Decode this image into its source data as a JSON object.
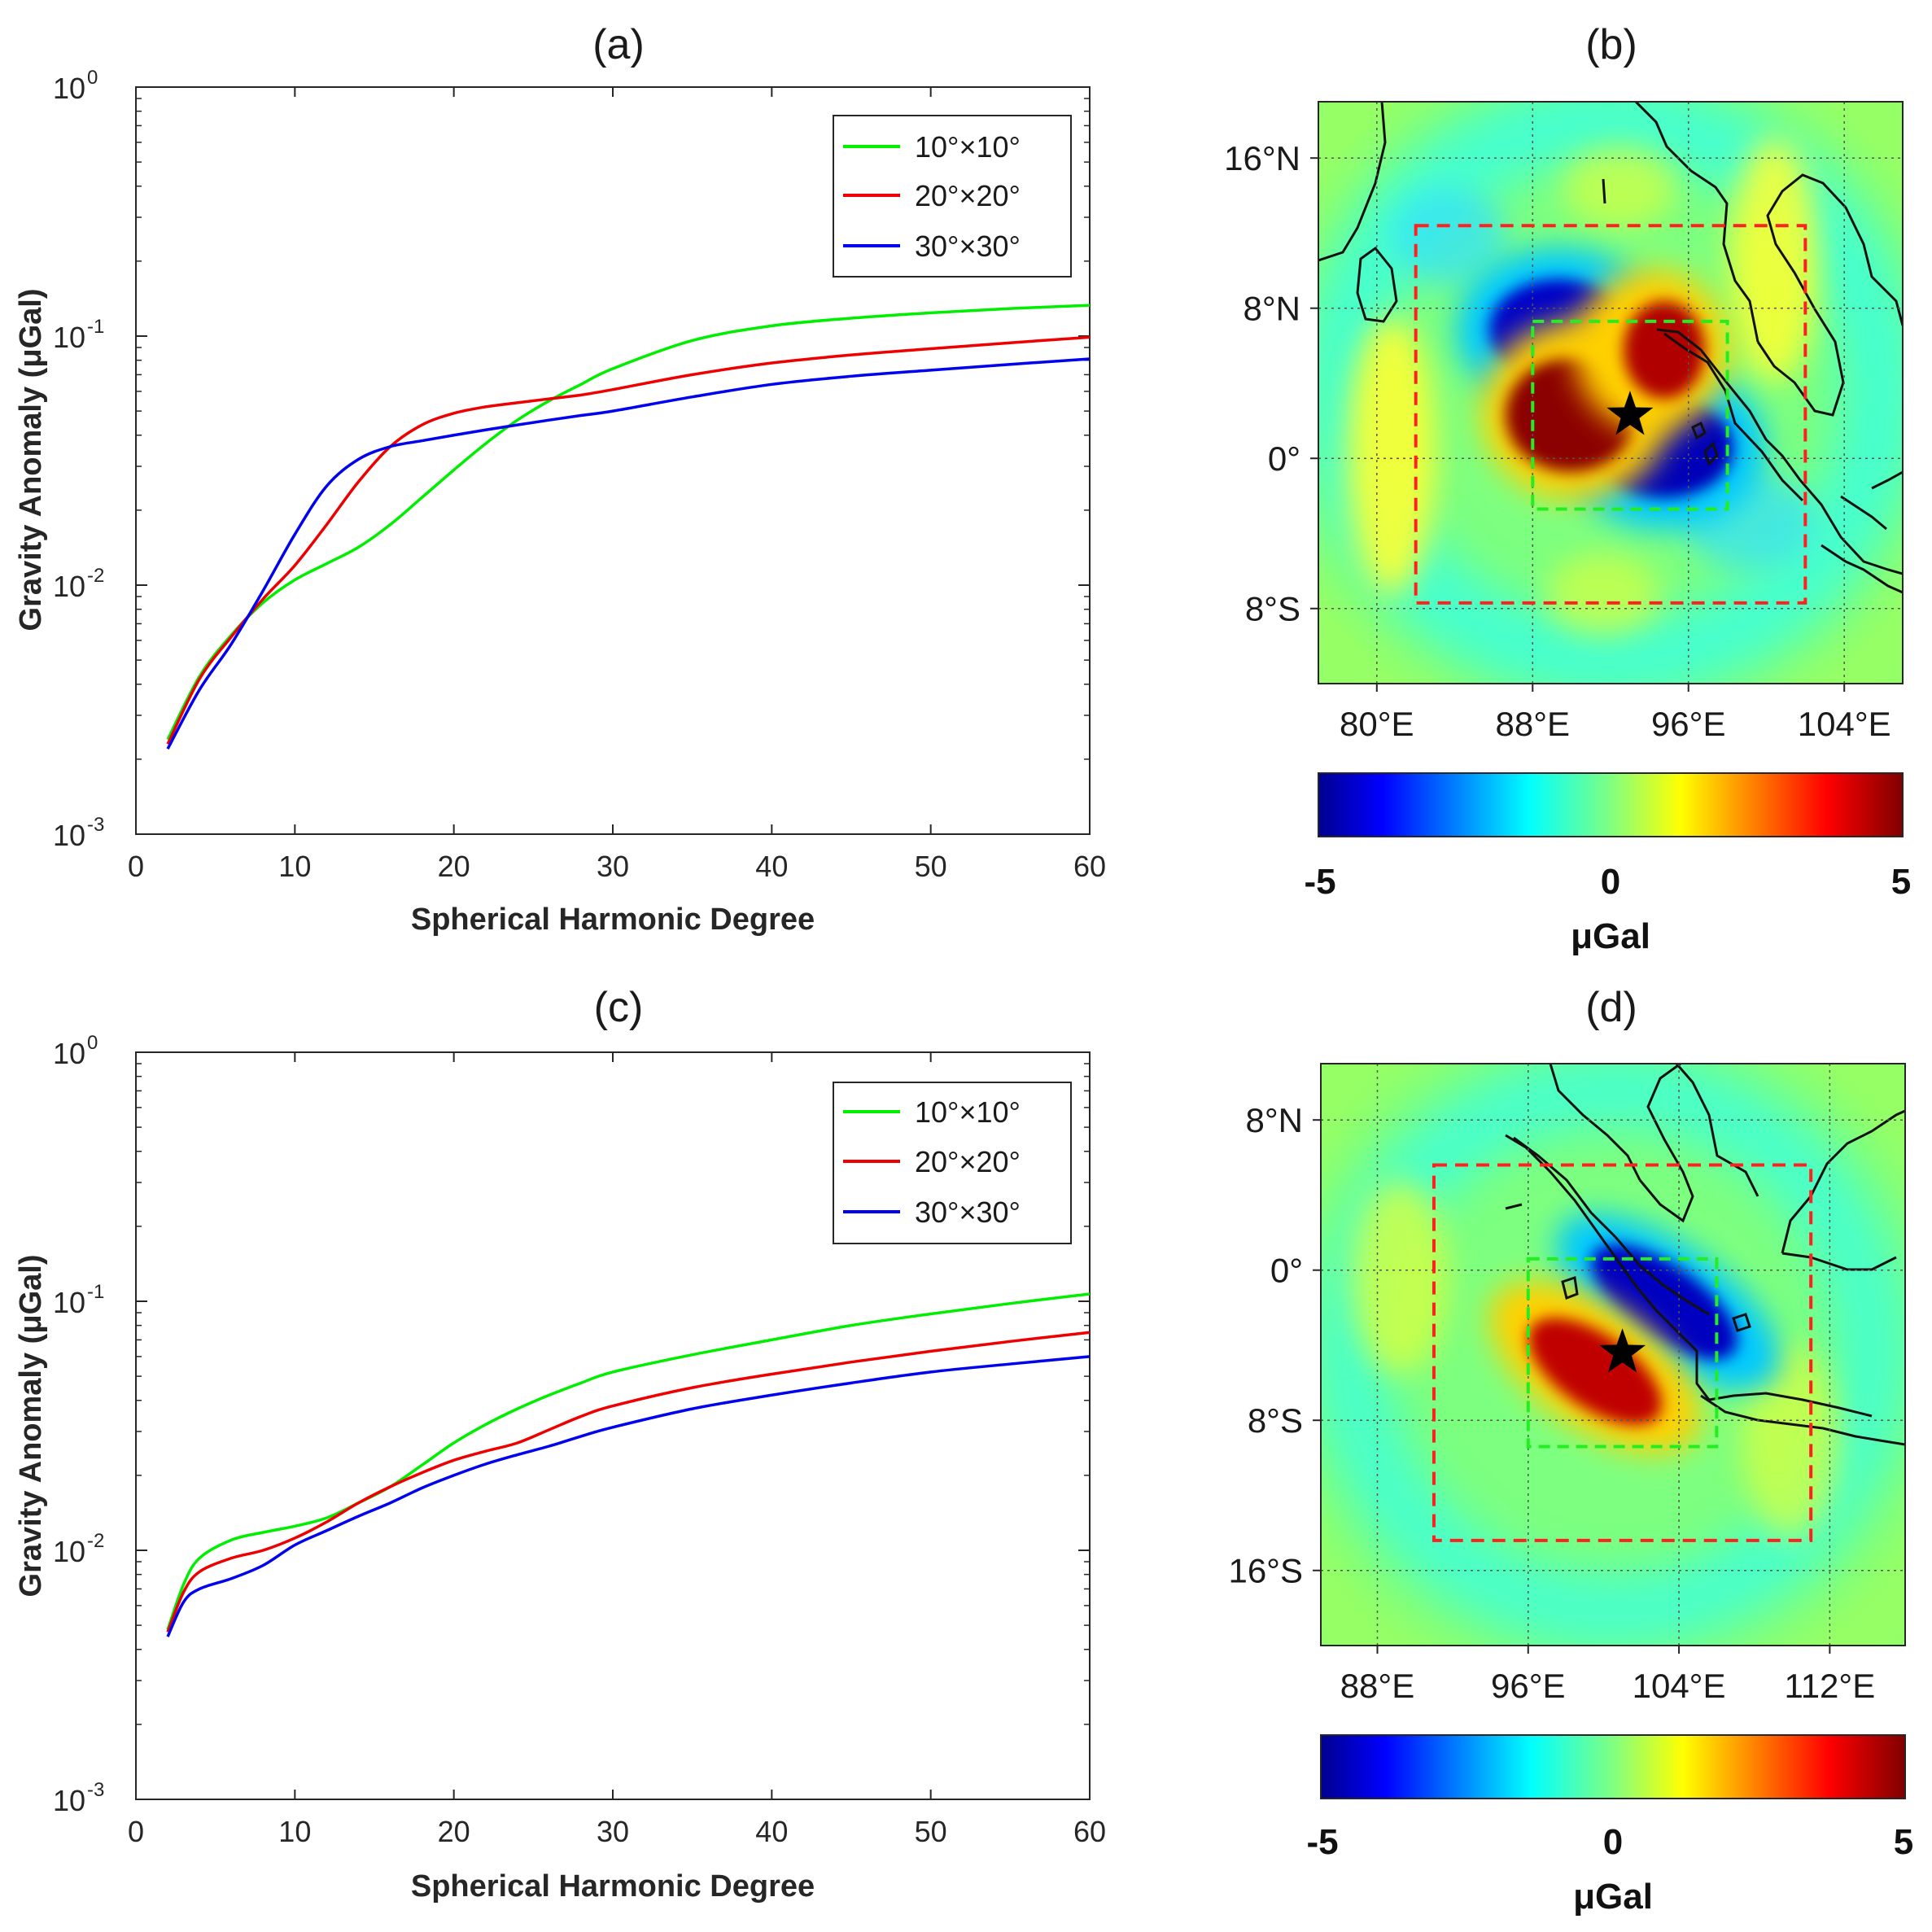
{
  "chart_data": [
    {
      "id": "a",
      "type": "line",
      "title": "(a)",
      "xlabel": "Spherical Harmonic Degree",
      "ylabel": "Gravity Anomaly (μGal)",
      "xlim": [
        0,
        60
      ],
      "ylim": [
        0.001,
        1
      ],
      "yscale": "log",
      "xticks": [
        "0",
        "10",
        "20",
        "30",
        "40",
        "50",
        "60"
      ],
      "yticks": [
        {
          "base": "10",
          "exp": "0"
        },
        {
          "base": "10",
          "exp": "-1"
        },
        {
          "base": "10",
          "exp": "-2"
        },
        {
          "base": "10",
          "exp": "-3"
        }
      ],
      "legend_position": "top-right",
      "series": [
        {
          "name": "10°×10°",
          "color": "#00ee00",
          "x": [
            2,
            4,
            6,
            8,
            10,
            12,
            14,
            16,
            18,
            20,
            22,
            24,
            26,
            28,
            30,
            35,
            40,
            45,
            50,
            55,
            60
          ],
          "y": [
            0.0024,
            0.0043,
            0.0063,
            0.0085,
            0.0105,
            0.0122,
            0.0142,
            0.0175,
            0.0225,
            0.029,
            0.037,
            0.046,
            0.055,
            0.064,
            0.074,
            0.096,
            0.11,
            0.118,
            0.124,
            0.129,
            0.133
          ]
        },
        {
          "name": "20°×20°",
          "color": "#ee0000",
          "x": [
            2,
            4,
            6,
            8,
            10,
            12,
            14,
            16,
            18,
            20,
            22,
            24,
            26,
            28,
            30,
            35,
            40,
            45,
            50,
            55,
            60
          ],
          "y": [
            0.0023,
            0.0042,
            0.0062,
            0.0088,
            0.012,
            0.0175,
            0.026,
            0.036,
            0.044,
            0.049,
            0.052,
            0.054,
            0.056,
            0.058,
            0.061,
            0.07,
            0.078,
            0.084,
            0.089,
            0.094,
            0.099
          ]
        },
        {
          "name": "30°×30°",
          "color": "#0000ee",
          "x": [
            2,
            4,
            6,
            8,
            10,
            12,
            14,
            16,
            18,
            20,
            22,
            24,
            26,
            28,
            30,
            35,
            40,
            45,
            50,
            55,
            60
          ],
          "y": [
            0.0022,
            0.0038,
            0.0058,
            0.0095,
            0.016,
            0.025,
            0.032,
            0.036,
            0.038,
            0.04,
            0.042,
            0.044,
            0.046,
            0.048,
            0.05,
            0.057,
            0.064,
            0.069,
            0.073,
            0.077,
            0.081
          ]
        }
      ]
    },
    {
      "id": "b",
      "type": "heatmap",
      "title": "(b)",
      "lon_range": [
        77,
        107
      ],
      "lat_range": [
        -12,
        19
      ],
      "lon_ticks": [
        {
          "value": 80,
          "label": "80°E"
        },
        {
          "value": 88,
          "label": "88°E"
        },
        {
          "value": 96,
          "label": "96°E"
        },
        {
          "value": 104,
          "label": "104°E"
        }
      ],
      "lat_ticks": [
        {
          "value": 16,
          "label": "16°N"
        },
        {
          "value": 8,
          "label": "8°N"
        },
        {
          "value": 0,
          "label": "0°"
        },
        {
          "value": -8,
          "label": "8°S"
        }
      ],
      "epicenter": {
        "lon": 93,
        "lat": 2.3
      },
      "inner_box": {
        "lon": [
          88,
          98
        ],
        "lat": [
          -2.7,
          7.3
        ]
      },
      "outer_box": {
        "lon": [
          82,
          102
        ],
        "lat": [
          -7.7,
          12.4
        ]
      },
      "colorbar": {
        "min": -5,
        "max": 5,
        "ticks": [
          "-5",
          "0",
          "5"
        ],
        "label": "μGal"
      }
    },
    {
      "id": "c",
      "type": "line",
      "title": "(c)",
      "xlabel": "Spherical Harmonic Degree",
      "ylabel": "Gravity Anomaly (μGal)",
      "xlim": [
        0,
        60
      ],
      "ylim": [
        0.001,
        1
      ],
      "yscale": "log",
      "xticks": [
        "0",
        "10",
        "20",
        "30",
        "40",
        "50",
        "60"
      ],
      "yticks": [
        {
          "base": "10",
          "exp": "0"
        },
        {
          "base": "10",
          "exp": "-1"
        },
        {
          "base": "10",
          "exp": "-2"
        },
        {
          "base": "10",
          "exp": "-3"
        }
      ],
      "legend_position": "top-right",
      "series": [
        {
          "name": "10°×10°",
          "color": "#00ee00",
          "x": [
            2,
            3,
            4,
            6,
            8,
            10,
            12,
            14,
            16,
            18,
            20,
            22,
            24,
            26,
            28,
            30,
            35,
            40,
            45,
            50,
            55,
            60
          ],
          "y": [
            0.0048,
            0.0073,
            0.0093,
            0.011,
            0.0118,
            0.0125,
            0.0135,
            0.0155,
            0.018,
            0.022,
            0.027,
            0.032,
            0.037,
            0.042,
            0.047,
            0.052,
            0.061,
            0.07,
            0.08,
            0.089,
            0.098,
            0.107
          ]
        },
        {
          "name": "20°×20°",
          "color": "#ee0000",
          "x": [
            2,
            3,
            4,
            6,
            8,
            10,
            12,
            14,
            16,
            18,
            20,
            22,
            24,
            26,
            28,
            30,
            35,
            40,
            45,
            50,
            55,
            60
          ],
          "y": [
            0.0047,
            0.0068,
            0.0082,
            0.0093,
            0.01,
            0.0112,
            0.013,
            0.0155,
            0.018,
            0.0205,
            0.023,
            0.025,
            0.027,
            0.0305,
            0.0345,
            0.038,
            0.045,
            0.051,
            0.057,
            0.063,
            0.069,
            0.075
          ]
        },
        {
          "name": "30°×30°",
          "color": "#0000ee",
          "x": [
            2,
            3,
            4,
            6,
            8,
            10,
            12,
            14,
            16,
            18,
            20,
            22,
            24,
            26,
            28,
            30,
            35,
            40,
            45,
            50,
            55,
            60
          ],
          "y": [
            0.0045,
            0.0062,
            0.007,
            0.0077,
            0.0087,
            0.0105,
            0.012,
            0.0137,
            0.0155,
            0.0178,
            0.02,
            0.0222,
            0.0242,
            0.0262,
            0.0287,
            0.0312,
            0.037,
            0.042,
            0.047,
            0.052,
            0.056,
            0.06
          ]
        }
      ]
    },
    {
      "id": "d",
      "type": "heatmap",
      "title": "(d)",
      "lon_range": [
        85,
        116
      ],
      "lat_range": [
        -20,
        11
      ],
      "lon_ticks": [
        {
          "value": 88,
          "label": "88°E"
        },
        {
          "value": 96,
          "label": "96°E"
        },
        {
          "value": 104,
          "label": "104°E"
        },
        {
          "value": 112,
          "label": "112°E"
        }
      ],
      "lat_ticks": [
        {
          "value": 8,
          "label": "8°N"
        },
        {
          "value": 0,
          "label": "0°"
        },
        {
          "value": -8,
          "label": "8°S"
        },
        {
          "value": -16,
          "label": "16°S"
        }
      ],
      "epicenter": {
        "lon": 101,
        "lat": -4.4
      },
      "inner_box": {
        "lon": [
          96,
          106
        ],
        "lat": [
          -9.4,
          0.6
        ]
      },
      "outer_box": {
        "lon": [
          91,
          111
        ],
        "lat": [
          -14.4,
          5.6
        ]
      },
      "colorbar": {
        "min": -5,
        "max": 5,
        "ticks": [
          "-5",
          "0",
          "5"
        ],
        "label": "μGal"
      }
    }
  ]
}
